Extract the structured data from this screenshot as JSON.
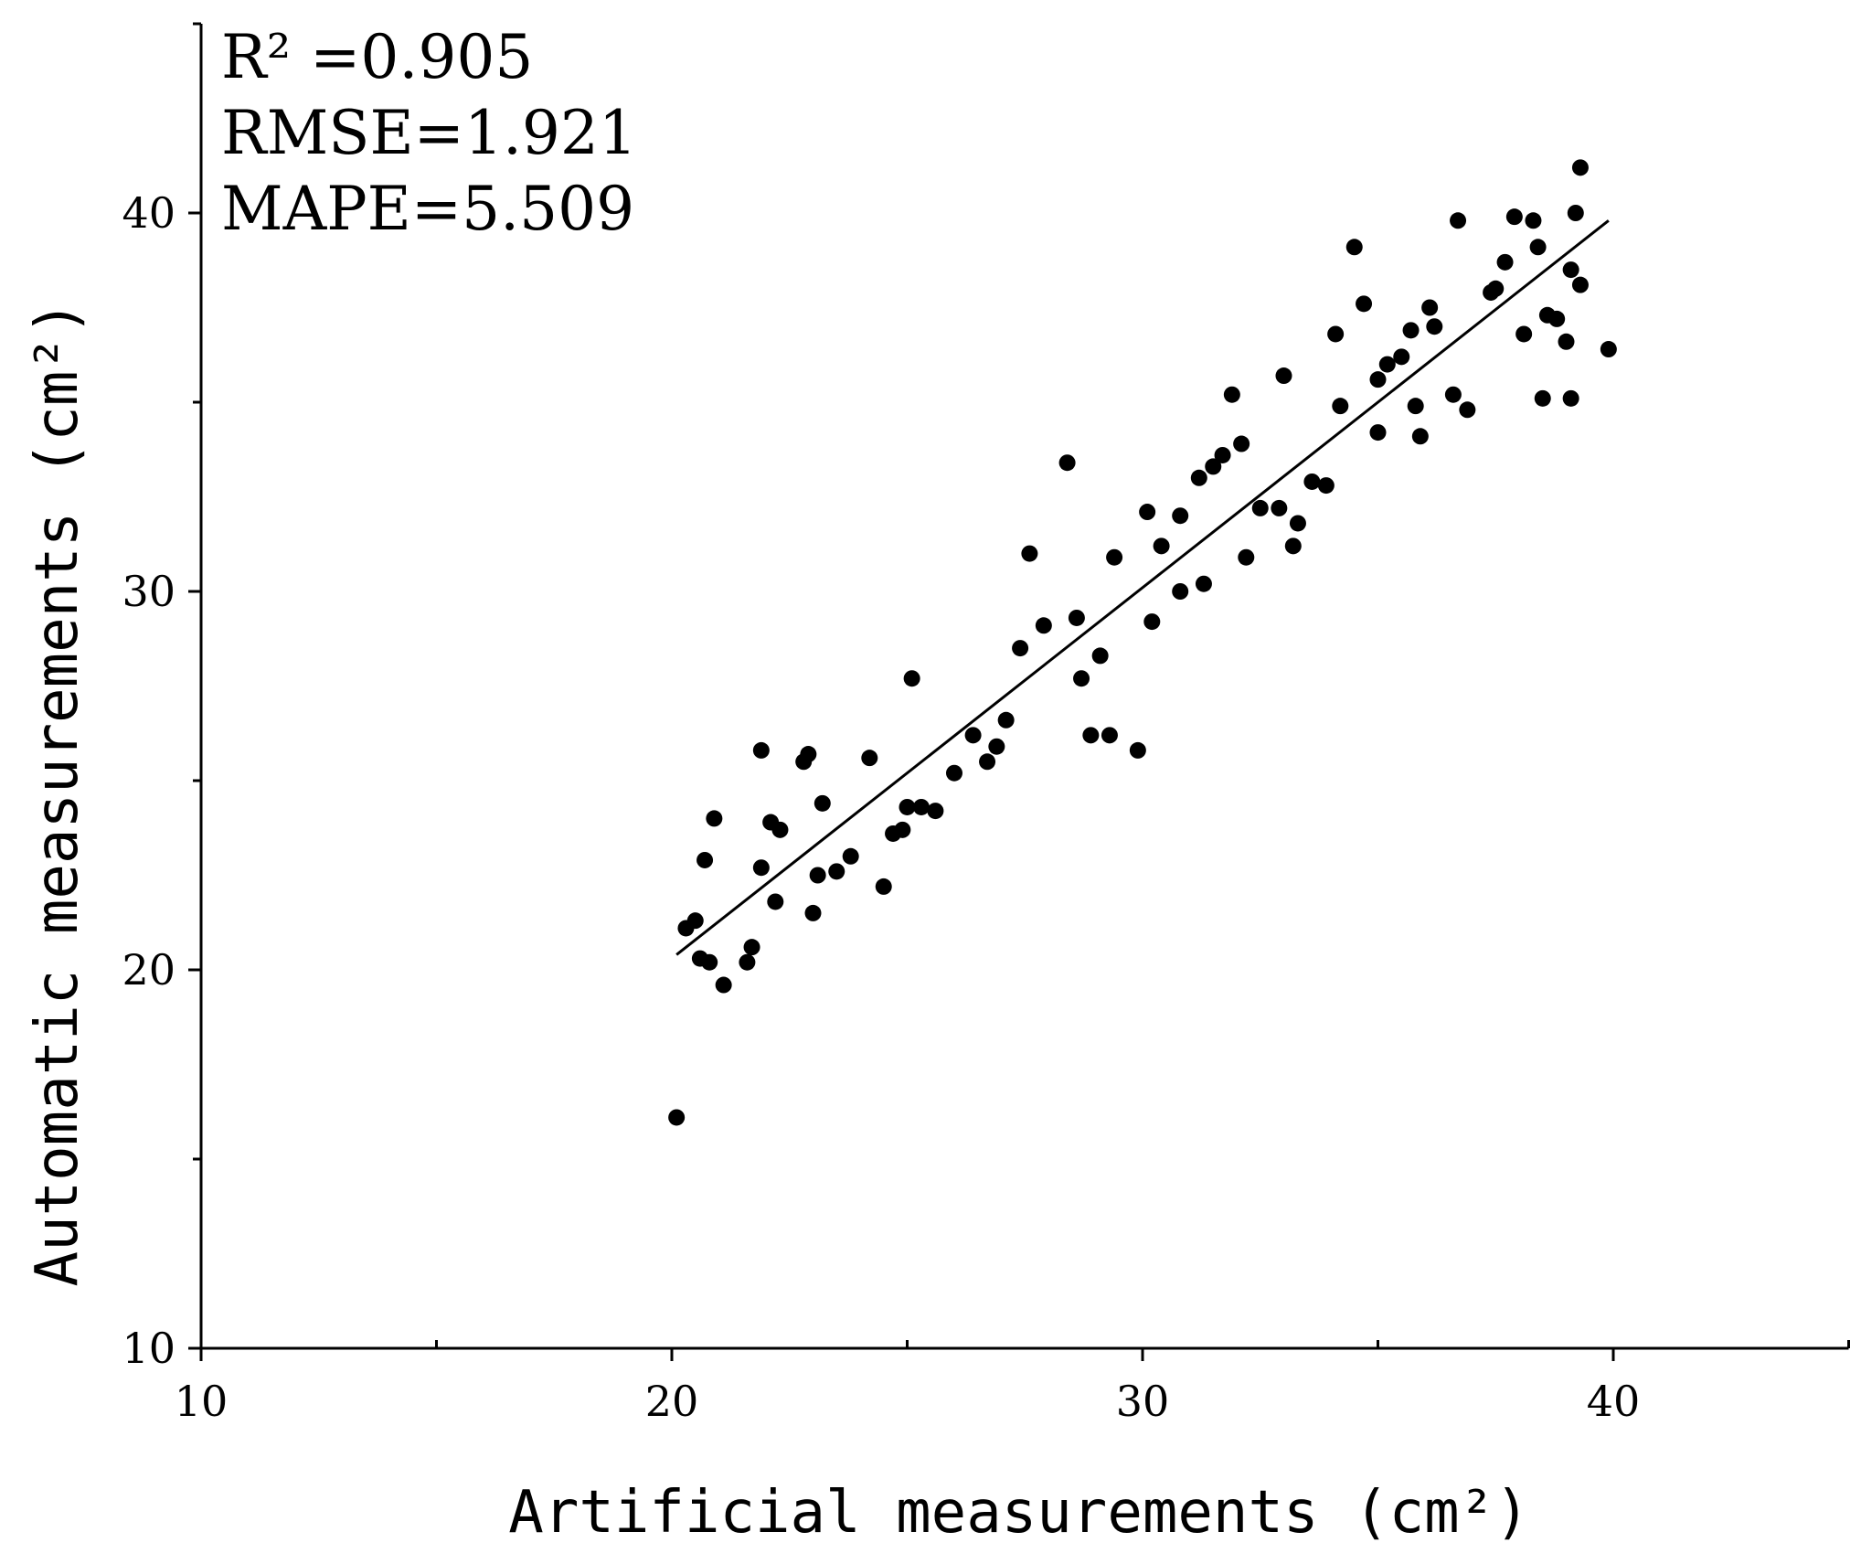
{
  "chart_data": {
    "type": "scatter",
    "xlabel": "Artificial measurements (cm²)",
    "ylabel": "Automatic measurements (cm²)",
    "xlim": [
      10,
      45
    ],
    "ylim": [
      10,
      45
    ],
    "x_ticks": [
      10,
      20,
      30,
      40
    ],
    "y_ticks": [
      10,
      20,
      30,
      40
    ],
    "x_minor_ticks": [
      15,
      25,
      35,
      45
    ],
    "y_minor_ticks": [
      15,
      25,
      35,
      45
    ],
    "annotations": [
      "R² =0.905",
      "RMSE=1.921",
      "MAPE=5.509"
    ],
    "fit_line": {
      "x": [
        20.1,
        39.9
      ],
      "y": [
        20.4,
        39.8
      ]
    },
    "points": [
      [
        20.1,
        16.1
      ],
      [
        20.3,
        21.1
      ],
      [
        20.5,
        21.3
      ],
      [
        20.6,
        20.3
      ],
      [
        20.7,
        22.9
      ],
      [
        20.8,
        20.2
      ],
      [
        20.9,
        24.0
      ],
      [
        21.1,
        19.6
      ],
      [
        21.6,
        20.2
      ],
      [
        21.7,
        20.6
      ],
      [
        21.9,
        25.8
      ],
      [
        21.9,
        22.7
      ],
      [
        22.1,
        23.9
      ],
      [
        22.2,
        21.8
      ],
      [
        22.3,
        23.7
      ],
      [
        22.8,
        25.5
      ],
      [
        22.9,
        25.7
      ],
      [
        23.0,
        21.5
      ],
      [
        23.1,
        22.5
      ],
      [
        23.2,
        24.4
      ],
      [
        23.5,
        22.6
      ],
      [
        23.8,
        23.0
      ],
      [
        24.2,
        25.6
      ],
      [
        24.5,
        22.2
      ],
      [
        24.7,
        23.6
      ],
      [
        24.9,
        23.7
      ],
      [
        25.0,
        24.3
      ],
      [
        25.1,
        27.7
      ],
      [
        25.3,
        24.3
      ],
      [
        25.6,
        24.2
      ],
      [
        26.0,
        25.2
      ],
      [
        26.4,
        26.2
      ],
      [
        26.7,
        25.5
      ],
      [
        26.9,
        25.9
      ],
      [
        27.1,
        26.6
      ],
      [
        27.4,
        28.5
      ],
      [
        27.6,
        31.0
      ],
      [
        27.9,
        29.1
      ],
      [
        28.4,
        33.4
      ],
      [
        28.6,
        29.3
      ],
      [
        28.7,
        27.7
      ],
      [
        28.9,
        26.2
      ],
      [
        29.1,
        28.3
      ],
      [
        29.3,
        26.2
      ],
      [
        29.4,
        30.9
      ],
      [
        29.9,
        25.8
      ],
      [
        30.1,
        32.1
      ],
      [
        30.2,
        29.2
      ],
      [
        30.4,
        31.2
      ],
      [
        30.8,
        30.0
      ],
      [
        30.8,
        32.0
      ],
      [
        31.2,
        33.0
      ],
      [
        31.3,
        30.2
      ],
      [
        31.5,
        33.3
      ],
      [
        31.7,
        33.6
      ],
      [
        31.9,
        35.2
      ],
      [
        32.1,
        33.9
      ],
      [
        32.2,
        30.9
      ],
      [
        32.5,
        32.2
      ],
      [
        32.9,
        32.2
      ],
      [
        33.0,
        35.7
      ],
      [
        33.2,
        31.2
      ],
      [
        33.3,
        31.8
      ],
      [
        33.6,
        32.9
      ],
      [
        33.9,
        32.8
      ],
      [
        34.1,
        36.8
      ],
      [
        34.2,
        34.9
      ],
      [
        34.5,
        39.1
      ],
      [
        34.7,
        37.6
      ],
      [
        35.0,
        35.6
      ],
      [
        35.0,
        34.2
      ],
      [
        35.2,
        36.0
      ],
      [
        35.5,
        36.2
      ],
      [
        35.7,
        36.9
      ],
      [
        35.8,
        34.9
      ],
      [
        35.9,
        34.1
      ],
      [
        36.1,
        37.5
      ],
      [
        36.2,
        37.0
      ],
      [
        36.6,
        35.2
      ],
      [
        36.7,
        39.8
      ],
      [
        36.9,
        34.8
      ],
      [
        37.4,
        37.9
      ],
      [
        37.5,
        38.0
      ],
      [
        37.7,
        38.7
      ],
      [
        37.9,
        39.9
      ],
      [
        38.1,
        36.8
      ],
      [
        38.3,
        39.8
      ],
      [
        38.4,
        39.1
      ],
      [
        38.5,
        35.1
      ],
      [
        38.6,
        37.3
      ],
      [
        38.8,
        37.2
      ],
      [
        39.0,
        36.6
      ],
      [
        39.1,
        35.1
      ],
      [
        39.1,
        38.5
      ],
      [
        39.2,
        40.0
      ],
      [
        39.3,
        41.2
      ],
      [
        39.3,
        38.1
      ],
      [
        39.9,
        36.4
      ]
    ]
  }
}
